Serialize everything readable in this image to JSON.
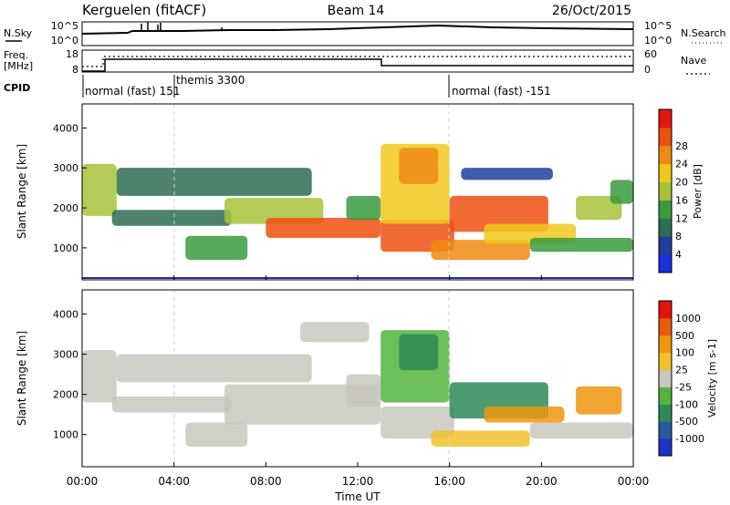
{
  "header": {
    "station": "Kerguelen (fitACF)",
    "beam": "Beam 14",
    "date": "26/Oct/2015"
  },
  "noise_panel": {
    "left_label": "N.Sky",
    "right_label": "N.Search",
    "ticks_left": [
      "10^5",
      "10^0"
    ],
    "ticks_right": [
      "10^5",
      "10^0"
    ]
  },
  "freq_panel": {
    "left_label_1": "Freq.",
    "left_label_2": "[MHz]",
    "left_ticks": [
      "18",
      "8"
    ],
    "right_label": "Nave",
    "right_ticks": [
      "60",
      "0"
    ]
  },
  "cpid": {
    "label": "CPID",
    "segments": [
      {
        "name": "normal (fast) 151",
        "start_hour": 0
      },
      {
        "name": "themis 3300",
        "start_hour": 4
      },
      {
        "name": "normal (fast) -151",
        "start_hour": 16
      }
    ]
  },
  "power_colorbar": {
    "label": "Power [dB]",
    "ticks": [
      "4",
      "8",
      "12",
      "16",
      "20",
      "24",
      "28"
    ],
    "colors": [
      "#1a2fe0",
      "#213d9e",
      "#2e6d54",
      "#3a9b3e",
      "#a6c23a",
      "#f0c81c",
      "#f08a14",
      "#ee5010",
      "#e6140e"
    ]
  },
  "velocity_colorbar": {
    "label": "Velocity [m s-1]",
    "ticks": [
      "1000",
      "500",
      "100",
      "25",
      "-25",
      "-100",
      "-500",
      "-1000"
    ],
    "colors": [
      "#1c33c8",
      "#255aa0",
      "#2f8a57",
      "#54b43c",
      "#c8c7be",
      "#f2c12a",
      "#f0960e",
      "#ec5a10",
      "#e1140e"
    ]
  },
  "chart_data": [
    {
      "type": "heatmap",
      "name": "power",
      "ylabel": "Slant Range [km]",
      "yticks": [
        "1000",
        "2000",
        "3000",
        "4000"
      ],
      "ylim": [
        200,
        4600
      ],
      "xlim": [
        0,
        24
      ],
      "blobs": [
        {
          "t0": 0,
          "t1": 1.5,
          "r0": 1800,
          "r1": 3100,
          "level": 4
        },
        {
          "t0": 1.3,
          "t1": 6.5,
          "r0": 1550,
          "r1": 1950,
          "level": 2
        },
        {
          "t0": 4.5,
          "t1": 7.2,
          "r0": 700,
          "r1": 1300,
          "level": 3
        },
        {
          "t0": 6.2,
          "t1": 10.5,
          "r0": 1600,
          "r1": 2250,
          "level": 4
        },
        {
          "t0": 8.0,
          "t1": 13.0,
          "r0": 1250,
          "r1": 1750,
          "level": 7
        },
        {
          "t0": 11.5,
          "t1": 13.0,
          "r0": 1700,
          "r1": 2300,
          "level": 3
        },
        {
          "t0": 13.0,
          "t1": 16.2,
          "r0": 900,
          "r1": 1700,
          "level": 7
        },
        {
          "t0": 13.0,
          "t1": 16.0,
          "r0": 1600,
          "r1": 3600,
          "level": 5
        },
        {
          "t0": 13.8,
          "t1": 15.5,
          "r0": 2600,
          "r1": 3500,
          "level": 6
        },
        {
          "t0": 16.0,
          "t1": 20.3,
          "r0": 1400,
          "r1": 2300,
          "level": 7
        },
        {
          "t0": 15.2,
          "t1": 19.5,
          "r0": 700,
          "r1": 1200,
          "level": 6
        },
        {
          "t0": 17.5,
          "t1": 21.5,
          "r0": 1100,
          "r1": 1600,
          "level": 5
        },
        {
          "t0": 21.5,
          "t1": 23.5,
          "r0": 1700,
          "r1": 2300,
          "level": 4
        },
        {
          "t0": 19.5,
          "t1": 24.0,
          "r0": 900,
          "r1": 1250,
          "level": 3
        },
        {
          "t0": 16.5,
          "t1": 20.5,
          "r0": 2700,
          "r1": 3000,
          "level": 1
        },
        {
          "t0": 1.5,
          "t1": 10.0,
          "r0": 2300,
          "r1": 3000,
          "level": 2
        },
        {
          "t0": 23.0,
          "t1": 24.0,
          "r0": 2100,
          "r1": 2700,
          "level": 3
        }
      ]
    },
    {
      "type": "heatmap",
      "name": "velocity",
      "ylabel": "Slant Range [km]",
      "yticks": [
        "1000",
        "2000",
        "3000",
        "4000"
      ],
      "ylim": [
        200,
        4600
      ],
      "xlim": [
        0,
        24
      ],
      "blobs": [
        {
          "t0": 0,
          "t1": 1.5,
          "r0": 1800,
          "r1": 3100,
          "level": 4
        },
        {
          "t0": 1.3,
          "t1": 6.5,
          "r0": 1550,
          "r1": 1950,
          "level": 4
        },
        {
          "t0": 4.5,
          "t1": 7.2,
          "r0": 700,
          "r1": 1300,
          "level": 4
        },
        {
          "t0": 6.2,
          "t1": 13.0,
          "r0": 1250,
          "r1": 2250,
          "level": 4
        },
        {
          "t0": 11.5,
          "t1": 13.0,
          "r0": 1700,
          "r1": 2500,
          "level": 4
        },
        {
          "t0": 13.0,
          "t1": 16.2,
          "r0": 900,
          "r1": 1700,
          "level": 4
        },
        {
          "t0": 13.0,
          "t1": 16.0,
          "r0": 1800,
          "r1": 3600,
          "level": 3
        },
        {
          "t0": 13.8,
          "t1": 15.5,
          "r0": 2600,
          "r1": 3500,
          "level": 2
        },
        {
          "t0": 16.0,
          "t1": 20.3,
          "r0": 1400,
          "r1": 2300,
          "level": 2
        },
        {
          "t0": 17.5,
          "t1": 21.0,
          "r0": 1300,
          "r1": 1700,
          "level": 6
        },
        {
          "t0": 15.2,
          "t1": 19.5,
          "r0": 700,
          "r1": 1100,
          "level": 5
        },
        {
          "t0": 21.5,
          "t1": 23.5,
          "r0": 1500,
          "r1": 2200,
          "level": 6
        },
        {
          "t0": 19.5,
          "t1": 24.0,
          "r0": 900,
          "r1": 1300,
          "level": 4
        },
        {
          "t0": 1.5,
          "t1": 10.0,
          "r0": 2300,
          "r1": 3000,
          "level": 4
        },
        {
          "t0": 9.5,
          "t1": 12.5,
          "r0": 3300,
          "r1": 3800,
          "level": 4
        }
      ]
    }
  ],
  "xaxis": {
    "label": "Time UT",
    "ticks": [
      "00:00",
      "04:00",
      "08:00",
      "12:00",
      "16:00",
      "20:00",
      "00:00"
    ]
  }
}
